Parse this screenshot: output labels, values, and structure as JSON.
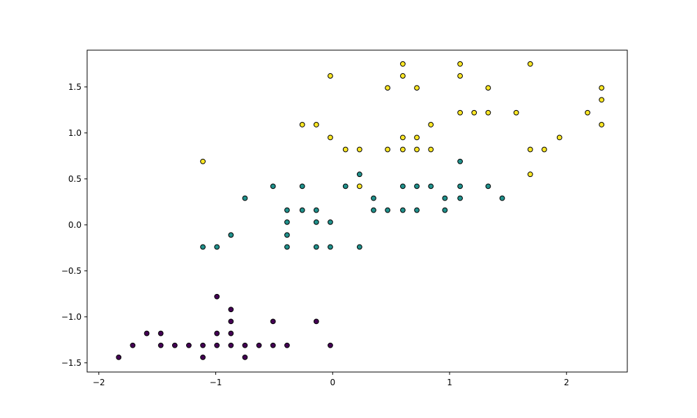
{
  "chart_data": {
    "type": "scatter",
    "title": "",
    "xlabel": "",
    "ylabel": "",
    "xlim": [
      -2.1,
      2.52
    ],
    "ylim": [
      -1.6,
      1.9
    ],
    "grid": false,
    "legend": "none",
    "x_ticks": [
      -2,
      -1,
      0,
      1,
      2
    ],
    "x_tick_labels": [
      "−2",
      "−1",
      "0",
      "1",
      "2"
    ],
    "y_ticks": [
      -1.5,
      -1.0,
      -0.5,
      0.0,
      0.5,
      1.0,
      1.5
    ],
    "y_tick_labels": [
      "−1.5",
      "−1.0",
      "−0.5",
      "0.0",
      "0.5",
      "1.0",
      "1.5"
    ],
    "series": [
      {
        "color": "#440154",
        "points": [
          [
            -1.83,
            -1.44
          ],
          [
            -1.71,
            -1.31
          ],
          [
            -1.59,
            -1.18
          ],
          [
            -1.47,
            -1.18
          ],
          [
            -1.47,
            -1.31
          ],
          [
            -1.35,
            -1.31
          ],
          [
            -1.23,
            -1.31
          ],
          [
            -1.11,
            -1.31
          ],
          [
            -1.11,
            -1.44
          ],
          [
            -0.99,
            -0.78
          ],
          [
            -0.99,
            -1.18
          ],
          [
            -0.99,
            -1.31
          ],
          [
            -0.87,
            -0.92
          ],
          [
            -0.87,
            -1.05
          ],
          [
            -0.87,
            -1.18
          ],
          [
            -0.87,
            -1.31
          ],
          [
            -0.75,
            -1.31
          ],
          [
            -0.75,
            -1.44
          ],
          [
            -0.63,
            -1.31
          ],
          [
            -0.51,
            -1.05
          ],
          [
            -0.51,
            -1.31
          ],
          [
            -0.39,
            -1.31
          ],
          [
            -0.14,
            -1.05
          ],
          [
            -0.02,
            -1.31
          ]
        ]
      },
      {
        "color": "#21918c",
        "points": [
          [
            -1.11,
            -0.24
          ],
          [
            -0.99,
            -0.24
          ],
          [
            -0.87,
            -0.11
          ],
          [
            -0.75,
            0.29
          ],
          [
            -0.51,
            0.42
          ],
          [
            -0.39,
            0.16
          ],
          [
            -0.39,
            0.03
          ],
          [
            -0.39,
            -0.11
          ],
          [
            -0.39,
            -0.24
          ],
          [
            -0.26,
            0.16
          ],
          [
            -0.26,
            0.42
          ],
          [
            -0.14,
            0.16
          ],
          [
            -0.14,
            0.03
          ],
          [
            -0.14,
            -0.24
          ],
          [
            -0.02,
            0.03
          ],
          [
            -0.02,
            -0.24
          ],
          [
            0.11,
            0.42
          ],
          [
            0.23,
            0.55
          ],
          [
            0.23,
            -0.24
          ],
          [
            0.35,
            0.29
          ],
          [
            0.35,
            0.16
          ],
          [
            0.47,
            0.16
          ],
          [
            0.6,
            0.42
          ],
          [
            0.6,
            0.16
          ],
          [
            0.72,
            0.42
          ],
          [
            0.72,
            0.16
          ],
          [
            0.84,
            0.42
          ],
          [
            0.96,
            0.29
          ],
          [
            0.96,
            0.16
          ],
          [
            1.09,
            0.69
          ],
          [
            1.09,
            0.42
          ],
          [
            1.09,
            0.29
          ],
          [
            1.33,
            0.42
          ],
          [
            1.45,
            0.29
          ]
        ]
      },
      {
        "color": "#fde725",
        "points": [
          [
            -1.11,
            0.69
          ],
          [
            -0.26,
            1.09
          ],
          [
            -0.14,
            1.09
          ],
          [
            -0.02,
            1.62
          ],
          [
            -0.02,
            0.95
          ],
          [
            0.11,
            0.82
          ],
          [
            0.23,
            0.82
          ],
          [
            0.23,
            0.42
          ],
          [
            0.47,
            1.49
          ],
          [
            0.47,
            0.82
          ],
          [
            0.6,
            1.75
          ],
          [
            0.6,
            1.62
          ],
          [
            0.6,
            0.95
          ],
          [
            0.6,
            0.82
          ],
          [
            0.72,
            1.49
          ],
          [
            0.72,
            0.95
          ],
          [
            0.72,
            0.82
          ],
          [
            0.84,
            1.09
          ],
          [
            0.84,
            0.82
          ],
          [
            1.09,
            1.75
          ],
          [
            1.09,
            1.62
          ],
          [
            1.09,
            1.22
          ],
          [
            1.21,
            1.22
          ],
          [
            1.33,
            1.49
          ],
          [
            1.33,
            1.22
          ],
          [
            1.57,
            1.22
          ],
          [
            1.69,
            1.75
          ],
          [
            1.69,
            0.82
          ],
          [
            1.69,
            0.55
          ],
          [
            1.81,
            0.82
          ],
          [
            1.94,
            0.95
          ],
          [
            2.18,
            1.22
          ],
          [
            2.3,
            1.49
          ],
          [
            2.3,
            1.36
          ],
          [
            2.3,
            1.09
          ]
        ]
      }
    ]
  }
}
